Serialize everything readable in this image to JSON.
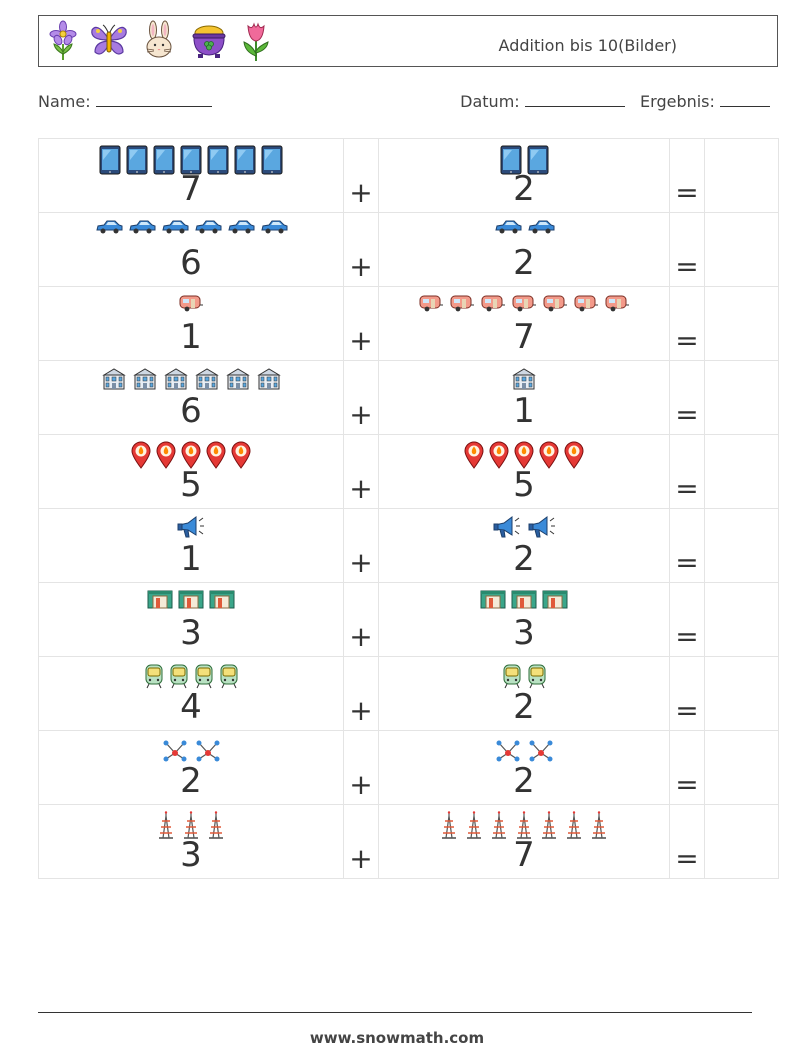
{
  "header": {
    "title": "Addition bis 10(Bilder)",
    "icons": [
      "flower-icon",
      "butterfly-icon",
      "bunny-icon",
      "pot-of-gold-icon",
      "tulip-icon"
    ]
  },
  "info": {
    "name_label": "Name:",
    "date_label": "Datum:",
    "result_label": "Ergebnis:"
  },
  "operators": {
    "plus": "+",
    "equals": "="
  },
  "problems": [
    {
      "a": 7,
      "b": 2,
      "icon": "tablet"
    },
    {
      "a": 6,
      "b": 2,
      "icon": "car"
    },
    {
      "a": 1,
      "b": 7,
      "icon": "camper"
    },
    {
      "a": 6,
      "b": 1,
      "icon": "building"
    },
    {
      "a": 5,
      "b": 5,
      "icon": "location-pin"
    },
    {
      "a": 1,
      "b": 2,
      "icon": "megaphone"
    },
    {
      "a": 3,
      "b": 3,
      "icon": "garage"
    },
    {
      "a": 4,
      "b": 2,
      "icon": "tram"
    },
    {
      "a": 2,
      "b": 2,
      "icon": "network"
    },
    {
      "a": 3,
      "b": 7,
      "icon": "tower"
    }
  ],
  "footer": {
    "url": "www.snowmath.com"
  }
}
